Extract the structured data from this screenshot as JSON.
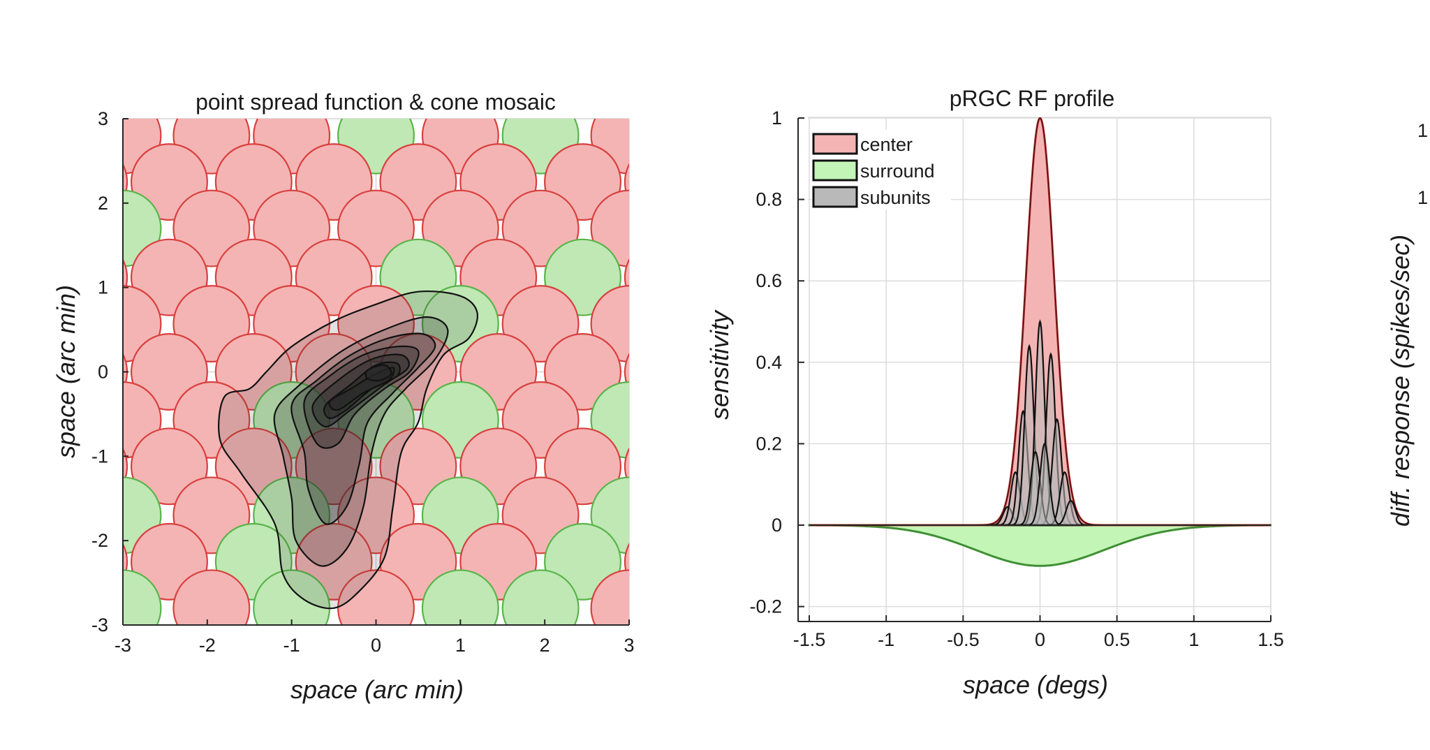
{
  "chart_data": [
    {
      "type": "heatmap",
      "title": "point spread function & cone mosaic",
      "xlabel": "space (arc min)",
      "ylabel": "space (arc min)",
      "xlim": [
        -3,
        3
      ],
      "ylim": [
        -3,
        3
      ],
      "xticks": [
        "-3",
        "-2",
        "-1",
        "0",
        "1",
        "2",
        "3"
      ],
      "yticks": [
        "3",
        "2",
        "1",
        "0",
        "-1",
        "-2",
        "-3"
      ],
      "grid": true,
      "colors": {
        "L_cone_fill": "#f4b4b4",
        "L_cone_edge": "#d8403e",
        "M_cone_fill": "#bfe8b4",
        "M_cone_edge": "#59b44a",
        "contour": "#111111"
      },
      "cone_radius": 0.45,
      "cones": [
        {
          "x": -3.0,
          "y": 2.8,
          "type": "L"
        },
        {
          "x": -1.95,
          "y": 2.8,
          "type": "L"
        },
        {
          "x": -1.0,
          "y": 2.8,
          "type": "L"
        },
        {
          "x": 0.0,
          "y": 2.8,
          "type": "M"
        },
        {
          "x": 1.0,
          "y": 2.8,
          "type": "L"
        },
        {
          "x": 1.95,
          "y": 2.8,
          "type": "M"
        },
        {
          "x": 3.0,
          "y": 2.8,
          "type": "L"
        },
        {
          "x": -3.4,
          "y": 2.25,
          "type": "L"
        },
        {
          "x": -2.45,
          "y": 2.25,
          "type": "L"
        },
        {
          "x": -1.45,
          "y": 2.25,
          "type": "L"
        },
        {
          "x": -0.5,
          "y": 2.25,
          "type": "L"
        },
        {
          "x": 0.5,
          "y": 2.25,
          "type": "L"
        },
        {
          "x": 1.45,
          "y": 2.25,
          "type": "L"
        },
        {
          "x": 2.45,
          "y": 2.25,
          "type": "L"
        },
        {
          "x": 3.4,
          "y": 2.25,
          "type": "L"
        },
        {
          "x": -3.0,
          "y": 1.7,
          "type": "M"
        },
        {
          "x": -1.95,
          "y": 1.7,
          "type": "L"
        },
        {
          "x": -1.0,
          "y": 1.7,
          "type": "L"
        },
        {
          "x": 0.0,
          "y": 1.7,
          "type": "L"
        },
        {
          "x": 1.0,
          "y": 1.7,
          "type": "L"
        },
        {
          "x": 1.95,
          "y": 1.7,
          "type": "L"
        },
        {
          "x": 3.0,
          "y": 1.7,
          "type": "L"
        },
        {
          "x": -3.4,
          "y": 1.12,
          "type": "L"
        },
        {
          "x": -2.45,
          "y": 1.12,
          "type": "L"
        },
        {
          "x": -1.45,
          "y": 1.12,
          "type": "L"
        },
        {
          "x": -0.5,
          "y": 1.12,
          "type": "L"
        },
        {
          "x": 0.5,
          "y": 1.12,
          "type": "M"
        },
        {
          "x": 1.45,
          "y": 1.12,
          "type": "L"
        },
        {
          "x": 2.45,
          "y": 1.12,
          "type": "M"
        },
        {
          "x": 3.4,
          "y": 1.12,
          "type": "L"
        },
        {
          "x": -3.0,
          "y": 0.57,
          "type": "L"
        },
        {
          "x": -1.95,
          "y": 0.57,
          "type": "L"
        },
        {
          "x": -1.0,
          "y": 0.57,
          "type": "L"
        },
        {
          "x": 0.0,
          "y": 0.57,
          "type": "L"
        },
        {
          "x": 1.0,
          "y": 0.57,
          "type": "M"
        },
        {
          "x": 1.95,
          "y": 0.57,
          "type": "L"
        },
        {
          "x": 3.0,
          "y": 0.57,
          "type": "L"
        },
        {
          "x": -3.4,
          "y": 0.0,
          "type": "L"
        },
        {
          "x": -2.45,
          "y": 0.0,
          "type": "L"
        },
        {
          "x": -1.45,
          "y": 0.0,
          "type": "L"
        },
        {
          "x": -0.5,
          "y": 0.0,
          "type": "L"
        },
        {
          "x": 0.5,
          "y": 0.0,
          "type": "L"
        },
        {
          "x": 1.45,
          "y": 0.0,
          "type": "L"
        },
        {
          "x": 2.45,
          "y": 0.0,
          "type": "L"
        },
        {
          "x": 3.4,
          "y": 0.0,
          "type": "L"
        },
        {
          "x": -3.0,
          "y": -0.57,
          "type": "L"
        },
        {
          "x": -1.95,
          "y": -0.57,
          "type": "L"
        },
        {
          "x": -1.0,
          "y": -0.57,
          "type": "M"
        },
        {
          "x": 0.0,
          "y": -0.57,
          "type": "M"
        },
        {
          "x": 1.0,
          "y": -0.57,
          "type": "M"
        },
        {
          "x": 1.95,
          "y": -0.57,
          "type": "L"
        },
        {
          "x": 3.0,
          "y": -0.57,
          "type": "M"
        },
        {
          "x": -3.4,
          "y": -1.12,
          "type": "L"
        },
        {
          "x": -2.45,
          "y": -1.12,
          "type": "L"
        },
        {
          "x": -1.45,
          "y": -1.12,
          "type": "L"
        },
        {
          "x": -0.5,
          "y": -1.12,
          "type": "L"
        },
        {
          "x": 0.5,
          "y": -1.12,
          "type": "L"
        },
        {
          "x": 1.45,
          "y": -1.12,
          "type": "L"
        },
        {
          "x": 2.45,
          "y": -1.12,
          "type": "L"
        },
        {
          "x": 3.4,
          "y": -1.12,
          "type": "L"
        },
        {
          "x": -3.0,
          "y": -1.7,
          "type": "M"
        },
        {
          "x": -1.95,
          "y": -1.7,
          "type": "L"
        },
        {
          "x": -1.0,
          "y": -1.7,
          "type": "M"
        },
        {
          "x": 0.0,
          "y": -1.7,
          "type": "L"
        },
        {
          "x": 1.0,
          "y": -1.7,
          "type": "M"
        },
        {
          "x": 1.95,
          "y": -1.7,
          "type": "L"
        },
        {
          "x": 3.0,
          "y": -1.7,
          "type": "M"
        },
        {
          "x": -3.4,
          "y": -2.25,
          "type": "L"
        },
        {
          "x": -2.45,
          "y": -2.25,
          "type": "L"
        },
        {
          "x": -1.45,
          "y": -2.25,
          "type": "M"
        },
        {
          "x": -0.5,
          "y": -2.25,
          "type": "L"
        },
        {
          "x": 0.5,
          "y": -2.25,
          "type": "L"
        },
        {
          "x": 1.45,
          "y": -2.25,
          "type": "L"
        },
        {
          "x": 2.45,
          "y": -2.25,
          "type": "M"
        },
        {
          "x": 3.4,
          "y": -2.25,
          "type": "L"
        },
        {
          "x": -3.0,
          "y": -2.8,
          "type": "M"
        },
        {
          "x": -1.95,
          "y": -2.8,
          "type": "L"
        },
        {
          "x": -1.0,
          "y": -2.8,
          "type": "M"
        },
        {
          "x": 0.0,
          "y": -2.8,
          "type": "L"
        },
        {
          "x": 1.0,
          "y": -2.8,
          "type": "M"
        },
        {
          "x": 1.95,
          "y": -2.8,
          "type": "M"
        },
        {
          "x": 3.0,
          "y": -2.8,
          "type": "L"
        }
      ],
      "psf_contours": [
        {
          "level": 1,
          "points": [
            [
              -1.8,
              -0.3
            ],
            [
              -1.5,
              -0.2
            ],
            [
              -1.3,
              0.0
            ],
            [
              -1.0,
              0.3
            ],
            [
              -0.5,
              0.6
            ],
            [
              0.0,
              0.8
            ],
            [
              0.5,
              0.95
            ],
            [
              1.0,
              0.9
            ],
            [
              1.2,
              0.7
            ],
            [
              1.1,
              0.4
            ],
            [
              0.8,
              0.2
            ],
            [
              0.6,
              -0.2
            ],
            [
              0.5,
              -0.6
            ],
            [
              0.3,
              -0.95
            ],
            [
              0.2,
              -1.6
            ],
            [
              0.1,
              -2.2
            ],
            [
              -0.2,
              -2.6
            ],
            [
              -0.5,
              -2.8
            ],
            [
              -0.85,
              -2.7
            ],
            [
              -1.1,
              -2.4
            ],
            [
              -1.2,
              -1.8
            ],
            [
              -1.6,
              -1.2
            ],
            [
              -1.85,
              -0.8
            ]
          ]
        },
        {
          "level": 2,
          "points": [
            [
              -1.2,
              -0.5
            ],
            [
              -0.9,
              -0.15
            ],
            [
              -0.4,
              0.25
            ],
            [
              0.1,
              0.5
            ],
            [
              0.6,
              0.65
            ],
            [
              0.85,
              0.5
            ],
            [
              0.7,
              0.15
            ],
            [
              0.35,
              -0.2
            ],
            [
              0.1,
              -0.5
            ],
            [
              -0.05,
              -0.95
            ],
            [
              -0.15,
              -1.6
            ],
            [
              -0.35,
              -2.1
            ],
            [
              -0.65,
              -2.3
            ],
            [
              -0.95,
              -2.0
            ],
            [
              -1.0,
              -1.5
            ],
            [
              -1.1,
              -1.0
            ]
          ]
        },
        {
          "level": 3,
          "points": [
            [
              -1.0,
              -0.4
            ],
            [
              -0.7,
              -0.1
            ],
            [
              -0.3,
              0.2
            ],
            [
              0.15,
              0.4
            ],
            [
              0.55,
              0.45
            ],
            [
              0.7,
              0.3
            ],
            [
              0.5,
              0.05
            ],
            [
              0.2,
              -0.25
            ],
            [
              -0.1,
              -0.6
            ],
            [
              -0.2,
              -1.1
            ],
            [
              -0.35,
              -1.6
            ],
            [
              -0.6,
              -1.8
            ],
            [
              -0.8,
              -1.4
            ],
            [
              -0.85,
              -0.95
            ]
          ]
        },
        {
          "level": 4,
          "points": [
            [
              -0.85,
              -0.35
            ],
            [
              -0.55,
              -0.05
            ],
            [
              -0.15,
              0.2
            ],
            [
              0.25,
              0.3
            ],
            [
              0.5,
              0.25
            ],
            [
              0.4,
              0.0
            ],
            [
              0.1,
              -0.2
            ],
            [
              -0.25,
              -0.5
            ],
            [
              -0.45,
              -0.85
            ],
            [
              -0.7,
              -0.85
            ]
          ]
        },
        {
          "level": 5,
          "points": [
            [
              -0.75,
              -0.4
            ],
            [
              -0.45,
              -0.1
            ],
            [
              -0.05,
              0.15
            ],
            [
              0.3,
              0.2
            ],
            [
              0.38,
              0.05
            ],
            [
              0.1,
              -0.15
            ],
            [
              -0.3,
              -0.45
            ],
            [
              -0.6,
              -0.65
            ]
          ]
        },
        {
          "level": 6,
          "points": [
            [
              -0.6,
              -0.4
            ],
            [
              -0.3,
              -0.15
            ],
            [
              0.0,
              0.08
            ],
            [
              0.25,
              0.1
            ],
            [
              0.25,
              -0.05
            ],
            [
              -0.05,
              -0.2
            ],
            [
              -0.35,
              -0.45
            ],
            [
              -0.55,
              -0.55
            ]
          ]
        },
        {
          "level": 7,
          "points": [
            [
              -0.55,
              -0.35
            ],
            [
              -0.3,
              -0.2
            ],
            [
              -0.05,
              -0.05
            ],
            [
              0.2,
              0.05
            ],
            [
              0.15,
              -0.1
            ],
            [
              -0.15,
              -0.25
            ],
            [
              -0.45,
              -0.45
            ]
          ]
        },
        {
          "level": 8,
          "points": [
            [
              -0.1,
              0.02
            ],
            [
              0.1,
              0.08
            ],
            [
              0.18,
              -0.02
            ],
            [
              0.05,
              -0.1
            ],
            [
              -0.1,
              -0.08
            ]
          ]
        }
      ]
    },
    {
      "type": "area",
      "title": "pRGC RF profile",
      "xlabel": "space (degs)",
      "ylabel": "sensitivity",
      "xlim": [
        -1.5,
        1.5
      ],
      "ylim": [
        -0.22,
        1.0
      ],
      "xticks": [
        "-1.5",
        "-1",
        "-0.5",
        "0",
        "0.5",
        "1",
        "1.5"
      ],
      "yticks": [
        "1",
        "0.8",
        "0.6",
        "0.4",
        "0.2",
        "0",
        "-0.2"
      ],
      "grid": true,
      "legend_position": "top-left",
      "series": [
        {
          "name": "center",
          "kind": "gaussian",
          "amplitude": 1.0,
          "mu": 0.0,
          "sigma": 0.092,
          "fill": "#f4b4b4",
          "edge": "#c0302e"
        },
        {
          "name": "surround",
          "kind": "gaussian",
          "amplitude": -0.1,
          "mu": 0.0,
          "sigma": 0.42,
          "fill": "#c2f5b6",
          "edge": "#3f8f34"
        },
        {
          "name": "subunits",
          "kind": "gaussians",
          "sigma": 0.03,
          "fill": "#b9b9b9",
          "edge": "#111111",
          "units": [
            {
              "mu": -0.21,
              "amplitude": 0.045
            },
            {
              "mu": -0.16,
              "amplitude": 0.13
            },
            {
              "mu": -0.11,
              "amplitude": 0.28
            },
            {
              "mu": -0.07,
              "amplitude": 0.44
            },
            {
              "mu": 0.0,
              "amplitude": 0.5
            },
            {
              "mu": 0.07,
              "amplitude": 0.42
            },
            {
              "mu": 0.11,
              "amplitude": 0.26
            },
            {
              "mu": 0.16,
              "amplitude": 0.13
            },
            {
              "mu": 0.2,
              "amplitude": 0.06
            },
            {
              "mu": -0.03,
              "amplitude": 0.18
            },
            {
              "mu": 0.03,
              "amplitude": 0.2
            }
          ]
        }
      ]
    },
    {
      "type": "line",
      "partial": true,
      "ylabel": "diff. response (spikes/sec)",
      "yticks_visible": [
        "1",
        "1"
      ]
    }
  ]
}
